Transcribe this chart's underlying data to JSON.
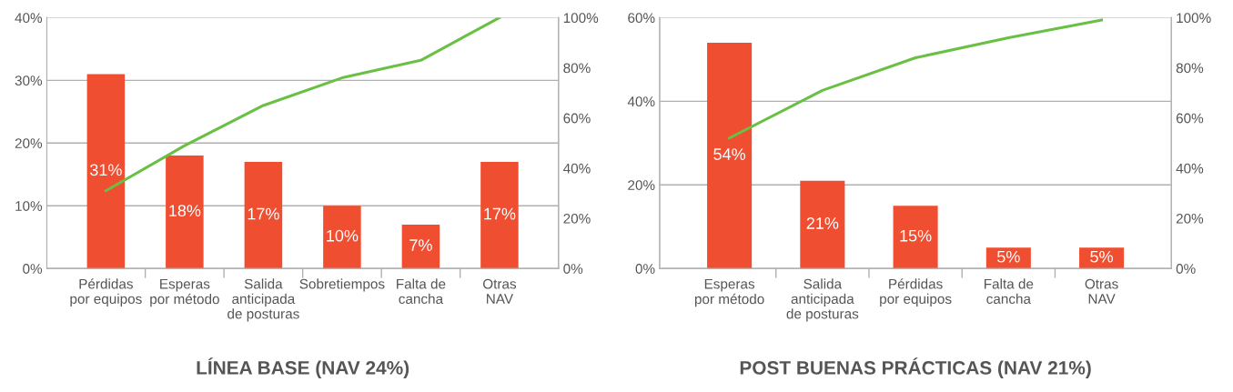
{
  "chart_data": [
    {
      "type": "bar",
      "title": "LÍNEA BASE (NAV 24%)",
      "categories": [
        "Pérdidas\npor equipos",
        "Esperas\npor método",
        "Salida\nanticipada\nde posturas",
        "Sobretiempos",
        "Falta de\ncancha",
        "Otras\nNAV"
      ],
      "series": [
        {
          "color": "#f04e30",
          "values": [
            31,
            18,
            17,
            10,
            7,
            17
          ],
          "value_labels": [
            "31%",
            "18%",
            "17%",
            "10%",
            "7%",
            "17%"
          ]
        },
        {
          "type": "line",
          "axis": "y2",
          "color": "#6abf45",
          "values": [
            31,
            49,
            65,
            76,
            83,
            100
          ]
        }
      ],
      "ylim": [
        0,
        40
      ],
      "yticks": [
        {
          "value": 0,
          "label": "0%"
        },
        {
          "value": 10,
          "label": "10%"
        },
        {
          "value": 20,
          "label": "20%"
        },
        {
          "value": 30,
          "label": "30%"
        },
        {
          "value": 40,
          "label": "40%"
        }
      ],
      "y2lim": [
        0,
        100
      ],
      "y2ticks": [
        {
          "value": 0,
          "label": "0%"
        },
        {
          "value": 20,
          "label": "20%"
        },
        {
          "value": 40,
          "label": "40%"
        },
        {
          "value": 60,
          "label": "60%"
        },
        {
          "value": 80,
          "label": "80%"
        },
        {
          "value": 100,
          "label": "100%"
        }
      ],
      "grid": "y",
      "marker": "none"
    },
    {
      "type": "bar",
      "title": "POST BUENAS PRÁCTICAS (NAV 21%)",
      "categories": [
        "Esperas\npor método",
        "Salida\nanticipada\nde posturas",
        "Pérdidas\npor equipos",
        "Falta de\ncancha",
        "Otras\nNAV"
      ],
      "series": [
        {
          "color": "#f04e30",
          "values": [
            54,
            21,
            15,
            5,
            5
          ],
          "value_labels": [
            "54%",
            "21%",
            "15%",
            "5%",
            "5%"
          ]
        },
        {
          "type": "line",
          "axis": "y2",
          "color": "#6abf45",
          "values": [
            52,
            71,
            84,
            92,
            99
          ]
        }
      ],
      "ylim": [
        0,
        60
      ],
      "yticks": [
        {
          "value": 0,
          "label": "0%"
        },
        {
          "value": 20,
          "label": "20%"
        },
        {
          "value": 40,
          "label": "40%"
        },
        {
          "value": 60,
          "label": "60%"
        }
      ],
      "y2lim": [
        0,
        100
      ],
      "y2ticks": [
        {
          "value": 0,
          "label": "0%"
        },
        {
          "value": 20,
          "label": "20%"
        },
        {
          "value": 40,
          "label": "40%"
        },
        {
          "value": 60,
          "label": "60%"
        },
        {
          "value": 80,
          "label": "80%"
        },
        {
          "value": 100,
          "label": "100%"
        }
      ],
      "grid": "y",
      "marker": "none"
    }
  ]
}
